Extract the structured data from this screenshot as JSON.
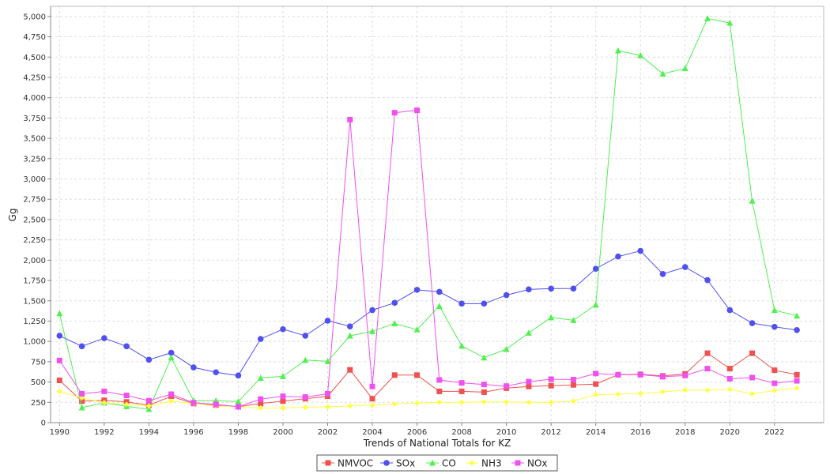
{
  "chart_data": {
    "type": "line",
    "title": "",
    "xlabel": "Trends of National Totals for KZ",
    "ylabel": "Gg",
    "x": [
      1990,
      1991,
      1992,
      1993,
      1994,
      1995,
      1996,
      1997,
      1998,
      1999,
      2000,
      2001,
      2002,
      2003,
      2004,
      2005,
      2006,
      2007,
      2008,
      2009,
      2010,
      2011,
      2012,
      2013,
      2014,
      2015,
      2016,
      2017,
      2018,
      2019,
      2020,
      2021,
      2022,
      2023
    ],
    "xlim": [
      1989.6,
      2024.2
    ],
    "ylim": [
      0,
      5125
    ],
    "xticks": [
      1990,
      1992,
      1994,
      1996,
      1998,
      2000,
      2002,
      2004,
      2006,
      2008,
      2010,
      2012,
      2014,
      2016,
      2018,
      2020,
      2022
    ],
    "xtick_labels": [
      "1990",
      "1992",
      "1994",
      "1996",
      "1998",
      "2000",
      "2002",
      "2004",
      "2006",
      "2008",
      "2010",
      "2012",
      "2014",
      "2016",
      "2018",
      "2020",
      "2022"
    ],
    "yticks": [
      0,
      250,
      500,
      750,
      1000,
      1250,
      1500,
      1750,
      2000,
      2250,
      2500,
      2750,
      3000,
      3250,
      3500,
      3750,
      4000,
      4250,
      4500,
      4750,
      5000
    ],
    "ytick_labels": [
      "0",
      "250",
      "500",
      "750",
      "1,000",
      "1,250",
      "1,500",
      "1,750",
      "2,000",
      "2,250",
      "2,500",
      "2,750",
      "3,000",
      "3,250",
      "3,500",
      "3,750",
      "4,000",
      "4,250",
      "4,500",
      "4,750",
      "5,000"
    ],
    "grid": true,
    "legend_position": "bottom-center",
    "series": [
      {
        "name": "NMVOC",
        "color": "#f05050",
        "marker": "square",
        "values": [
          520,
          265,
          275,
          255,
          215,
          325,
          235,
          215,
          195,
          235,
          265,
          295,
          325,
          650,
          295,
          585,
          585,
          385,
          385,
          375,
          425,
          445,
          455,
          465,
          475,
          590,
          595,
          575,
          600,
          855,
          665,
          855,
          645,
          590
        ]
      },
      {
        "name": "SOx",
        "color": "#5050f0",
        "marker": "circle",
        "values": [
          1070,
          940,
          1040,
          940,
          775,
          860,
          680,
          620,
          580,
          1030,
          1150,
          1070,
          1255,
          1185,
          1385,
          1475,
          1635,
          1610,
          1465,
          1465,
          1570,
          1640,
          1650,
          1650,
          1895,
          2045,
          2115,
          1830,
          1915,
          1755,
          1385,
          1225,
          1180,
          1140
        ]
      },
      {
        "name": "CO",
        "color": "#50f050",
        "marker": "triangle",
        "values": [
          1345,
          185,
          245,
          200,
          165,
          800,
          270,
          270,
          260,
          550,
          570,
          770,
          755,
          1070,
          1125,
          1220,
          1145,
          1435,
          945,
          800,
          905,
          1105,
          1295,
          1260,
          1450,
          4580,
          4520,
          4295,
          4360,
          4975,
          4920,
          2730,
          1385,
          1315
        ]
      },
      {
        "name": "NH3",
        "color": "#ffff40",
        "marker": "diamond",
        "values": [
          385,
          305,
          245,
          225,
          205,
          265,
          235,
          205,
          195,
          180,
          180,
          190,
          195,
          205,
          215,
          230,
          240,
          250,
          250,
          255,
          255,
          250,
          250,
          265,
          345,
          350,
          360,
          380,
          400,
          400,
          410,
          355,
          395,
          425
        ]
      },
      {
        "name": "NOx",
        "color": "#f050f0",
        "marker": "square",
        "values": [
          765,
          355,
          385,
          335,
          270,
          350,
          245,
          225,
          195,
          290,
          325,
          315,
          355,
          3730,
          445,
          3815,
          3845,
          525,
          490,
          470,
          450,
          505,
          535,
          530,
          605,
          590,
          590,
          565,
          580,
          665,
          540,
          555,
          485,
          515
        ]
      }
    ]
  }
}
